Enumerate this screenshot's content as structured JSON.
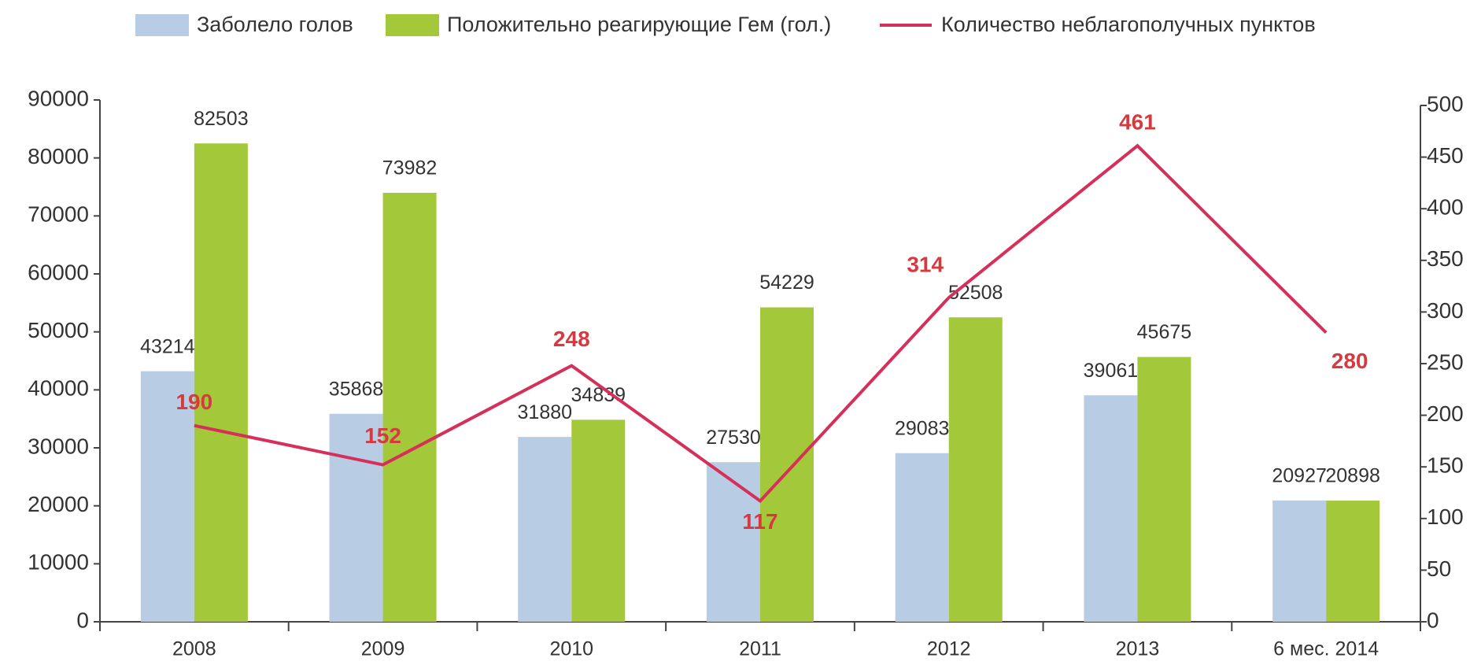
{
  "chart_data": {
    "type": "bar_line",
    "categories": [
      "2008",
      "2009",
      "2010",
      "2011",
      "2012",
      "2013",
      "6 мес. 2014"
    ],
    "series": [
      {
        "name": "Заболело голов",
        "color": "#b8cce4",
        "values": [
          43214,
          35868,
          31880,
          27530,
          29083,
          39061,
          20927
        ]
      },
      {
        "name": "Положительно реагирующие Гем (гол.)",
        "color": "#a3c93a",
        "values": [
          82503,
          73982,
          34839,
          54229,
          52508,
          45675,
          20898
        ]
      },
      {
        "name": "Количество неблагополучных пунктов",
        "color": "#d6305a",
        "type": "line",
        "axis": "y2",
        "values": [
          190,
          152,
          248,
          117,
          314,
          461,
          280
        ]
      }
    ],
    "ylim": [
      0,
      90000
    ],
    "yticks": [
      0,
      10000,
      20000,
      30000,
      40000,
      50000,
      60000,
      70000,
      80000,
      90000
    ],
    "y2lim": [
      0,
      500
    ],
    "y2ticks": [
      0,
      50,
      100,
      150,
      200,
      250,
      300,
      350,
      400,
      450,
      500
    ],
    "legend": "top"
  }
}
